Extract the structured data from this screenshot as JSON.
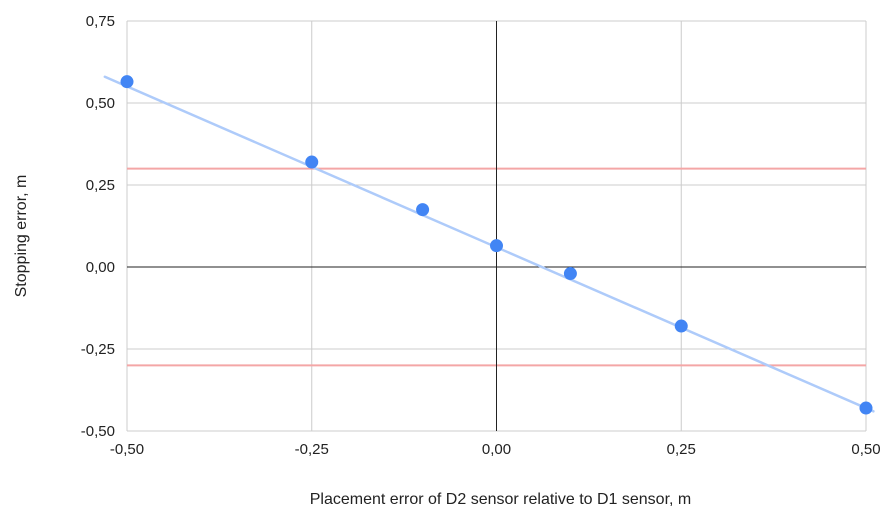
{
  "chart_data": {
    "type": "scatter",
    "title": "",
    "xlabel": "Placement error of D2 sensor relative to D1 sensor, m",
    "ylabel": "Stopping error, m",
    "xlim": [
      -0.5,
      0.5
    ],
    "ylim": [
      -0.5,
      0.75
    ],
    "x_ticks": [
      "-0,50",
      "-0,25",
      "0,00",
      "0,25",
      "0,50"
    ],
    "x_tick_values": [
      -0.5,
      -0.25,
      0,
      0.25,
      0.5
    ],
    "y_ticks": [
      "0,75",
      "0,50",
      "0,25",
      "0,00",
      "-0,25",
      "-0,50"
    ],
    "y_tick_values": [
      0.75,
      0.5,
      0.25,
      0,
      -0.25,
      -0.5
    ],
    "grid": true,
    "legend": "none",
    "series": [
      {
        "x": [
          -0.5,
          -0.25,
          -0.1,
          0,
          0.1,
          0.25,
          0.5
        ],
        "y": [
          0.565,
          0.32,
          0.175,
          0.065,
          -0.02,
          -0.18,
          -0.43
        ],
        "color": "#4285f4"
      }
    ],
    "trendline": {
      "x": [
        -0.53,
        0.51
      ],
      "y": [
        0.58,
        -0.44
      ],
      "color": "#aecbfa"
    },
    "reference_lines": [
      {
        "y": 0.3,
        "color": "#f4a6a6"
      },
      {
        "y": -0.3,
        "color": "#f4a6a6"
      }
    ],
    "zero_axes_color": "#222222",
    "grid_color": "#cccccc"
  }
}
